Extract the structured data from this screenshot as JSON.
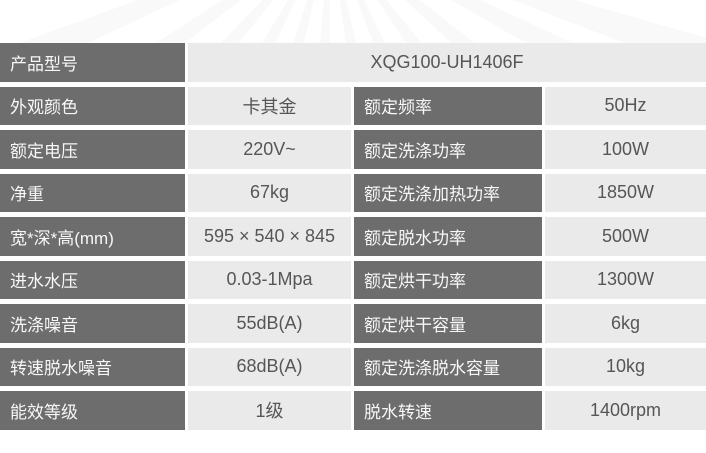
{
  "colors": {
    "label_bg": "#6d6d6d",
    "label_text": "#f7f7f7",
    "value_bg": "#eaeaea",
    "value_text": "#565656",
    "page_bg": "#ffffff"
  },
  "table": {
    "model_row": {
      "label": "产品型号",
      "value": "XQG100-UH1406F"
    },
    "rows": [
      {
        "left_label": "外观颜色",
        "left_value": "卡其金",
        "right_label": "额定频率",
        "right_value": "50Hz"
      },
      {
        "left_label": "额定电压",
        "left_value": "220V~",
        "right_label": "额定洗涤功率",
        "right_value": "100W"
      },
      {
        "left_label": "净重",
        "left_value": "67kg",
        "right_label": "额定洗涤加热功率",
        "right_value": "1850W"
      },
      {
        "left_label": "宽*深*高(mm)",
        "left_value": "595 × 540 × 845",
        "right_label": "额定脱水功率",
        "right_value": "500W"
      },
      {
        "left_label": "进水水压",
        "left_value": "0.03-1Mpa",
        "right_label": "额定烘干功率",
        "right_value": "1300W"
      },
      {
        "left_label": "洗涤噪音",
        "left_value": "55dB(A)",
        "right_label": "额定烘干容量",
        "right_value": "6kg"
      },
      {
        "left_label": "转速脱水噪音",
        "left_value": "68dB(A)",
        "right_label": "额定洗涤脱水容量",
        "right_value": "10kg"
      },
      {
        "left_label": "能效等级",
        "left_value": "1级",
        "right_label": "脱水转速",
        "right_value": "1400rpm"
      }
    ]
  }
}
